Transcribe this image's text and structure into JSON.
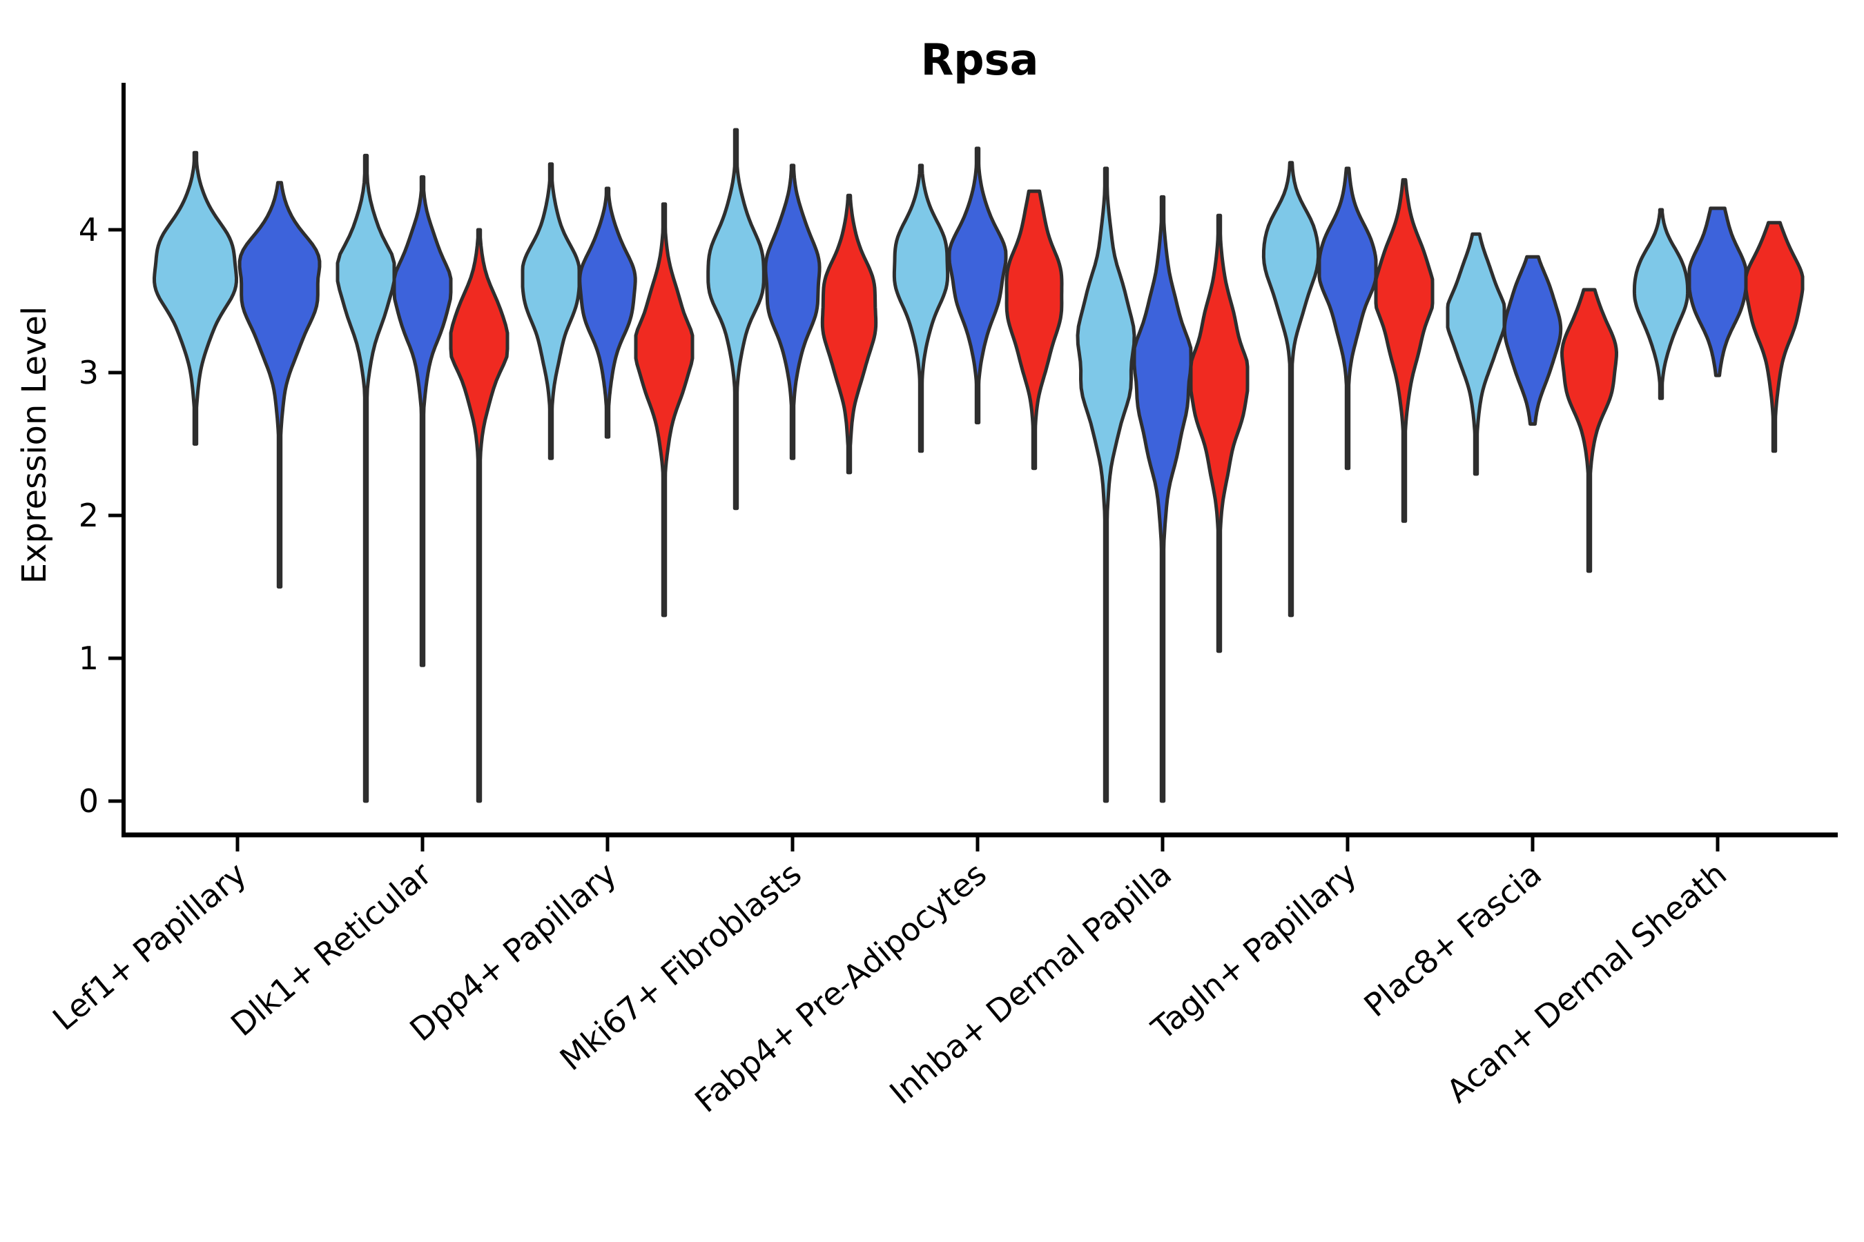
{
  "figure": {
    "title": "Rpsa",
    "background_color": "#FFFFFF"
  },
  "chart_data": {
    "type": "violin",
    "title": "Rpsa",
    "xlabel": "",
    "ylabel": "Expression Level",
    "yticks": [
      0,
      1,
      2,
      3,
      4
    ],
    "ylim_ticks": [
      0,
      4
    ],
    "grid": false,
    "legend": "none",
    "xtick_rotation_deg": 40,
    "outline_color": "#2E2E2E",
    "categories": [
      "Lef1+ Papillary",
      "Dlk1+ Reticular",
      "Dpp4+ Papillary",
      "Mki67+ Fibroblasts",
      "Fabp4+ Pre-Adipocytes",
      "Inhba+ Dermal Papilla",
      "Tagln+ Papillary",
      "Plac8+ Fascia",
      "Acan+ Dermal Sheath"
    ],
    "splits": [
      {
        "name": "light-blue",
        "color": "#7EC8E8"
      },
      {
        "name": "royal-blue",
        "color": "#3D63DB"
      },
      {
        "name": "red",
        "color": "#F02A21"
      }
    ],
    "violins": [
      {
        "category_index": 0,
        "split_index": 0,
        "min": 2.5,
        "mode": 3.78,
        "max": 4.54,
        "sigma_up": 0.26,
        "sigma_down": 0.38
      },
      {
        "category_index": 0,
        "split_index": 1,
        "min": 1.5,
        "mode": 3.7,
        "max": 4.33,
        "sigma_up": 0.25,
        "sigma_down": 0.42
      },
      {
        "category_index": 1,
        "split_index": 0,
        "min": 0.0,
        "mode": 3.69,
        "max": 4.52,
        "sigma_up": 0.27,
        "sigma_down": 0.33
      },
      {
        "category_index": 1,
        "split_index": 1,
        "min": 0.95,
        "mode": 3.62,
        "max": 4.37,
        "sigma_up": 0.26,
        "sigma_down": 0.35
      },
      {
        "category_index": 1,
        "split_index": 2,
        "min": 0.0,
        "mode": 3.25,
        "max": 4.0,
        "sigma_up": 0.27,
        "sigma_down": 0.33
      },
      {
        "category_index": 2,
        "split_index": 0,
        "min": 2.4,
        "mode": 3.66,
        "max": 4.46,
        "sigma_up": 0.27,
        "sigma_down": 0.36
      },
      {
        "category_index": 2,
        "split_index": 1,
        "min": 2.55,
        "mode": 3.64,
        "max": 4.29,
        "sigma_up": 0.24,
        "sigma_down": 0.35
      },
      {
        "category_index": 2,
        "split_index": 2,
        "min": 1.3,
        "mode": 3.18,
        "max": 4.18,
        "sigma_up": 0.32,
        "sigma_down": 0.35
      },
      {
        "category_index": 3,
        "split_index": 0,
        "min": 2.05,
        "mode": 3.74,
        "max": 4.7,
        "sigma_up": 0.28,
        "sigma_down": 0.34
      },
      {
        "category_index": 3,
        "split_index": 1,
        "min": 2.4,
        "mode": 3.67,
        "max": 4.45,
        "sigma_up": 0.3,
        "sigma_down": 0.36
      },
      {
        "category_index": 3,
        "split_index": 2,
        "min": 2.3,
        "mode": 3.45,
        "max": 4.24,
        "sigma_up": 0.31,
        "sigma_down": 0.38
      },
      {
        "category_index": 4,
        "split_index": 0,
        "min": 2.45,
        "mode": 3.8,
        "max": 4.45,
        "sigma_up": 0.24,
        "sigma_down": 0.34
      },
      {
        "category_index": 4,
        "split_index": 1,
        "min": 2.65,
        "mode": 3.75,
        "max": 4.57,
        "sigma_up": 0.28,
        "sigma_down": 0.33
      },
      {
        "category_index": 4,
        "split_index": 2,
        "min": 2.33,
        "mode": 3.5,
        "max": 4.27,
        "sigma_up": 0.42,
        "sigma_down": 0.35
      },
      {
        "category_index": 5,
        "split_index": 0,
        "min": 0.0,
        "mode": 3.15,
        "max": 4.43,
        "sigma_up": 0.45,
        "sigma_down": 0.45
      },
      {
        "category_index": 5,
        "split_index": 1,
        "min": 0.0,
        "mode": 3.0,
        "max": 4.23,
        "sigma_up": 0.42,
        "sigma_down": 0.48
      },
      {
        "category_index": 5,
        "split_index": 2,
        "min": 1.05,
        "mode": 2.95,
        "max": 4.1,
        "sigma_up": 0.4,
        "sigma_down": 0.42
      },
      {
        "category_index": 6,
        "split_index": 0,
        "min": 1.3,
        "mode": 3.85,
        "max": 4.47,
        "sigma_up": 0.24,
        "sigma_down": 0.32
      },
      {
        "category_index": 6,
        "split_index": 1,
        "min": 2.33,
        "mode": 3.75,
        "max": 4.43,
        "sigma_up": 0.27,
        "sigma_down": 0.33
      },
      {
        "category_index": 6,
        "split_index": 2,
        "min": 1.96,
        "mode": 3.6,
        "max": 4.35,
        "sigma_up": 0.3,
        "sigma_down": 0.4
      },
      {
        "category_index": 7,
        "split_index": 0,
        "min": 2.29,
        "mode": 3.42,
        "max": 3.97,
        "sigma_up": 0.27,
        "sigma_down": 0.33
      },
      {
        "category_index": 7,
        "split_index": 1,
        "min": 2.64,
        "mode": 3.34,
        "max": 3.81,
        "sigma_up": 0.26,
        "sigma_down": 0.32
      },
      {
        "category_index": 7,
        "split_index": 2,
        "min": 1.61,
        "mode": 3.1,
        "max": 3.58,
        "sigma_up": 0.26,
        "sigma_down": 0.32
      },
      {
        "category_index": 8,
        "split_index": 0,
        "min": 2.82,
        "mode": 3.62,
        "max": 4.14,
        "sigma_up": 0.2,
        "sigma_down": 0.28
      },
      {
        "category_index": 8,
        "split_index": 1,
        "min": 2.98,
        "mode": 3.6,
        "max": 4.15,
        "sigma_up": 0.33,
        "sigma_down": 0.26
      },
      {
        "category_index": 8,
        "split_index": 2,
        "min": 2.45,
        "mode": 3.65,
        "max": 4.05,
        "sigma_up": 0.22,
        "sigma_down": 0.38
      }
    ]
  }
}
